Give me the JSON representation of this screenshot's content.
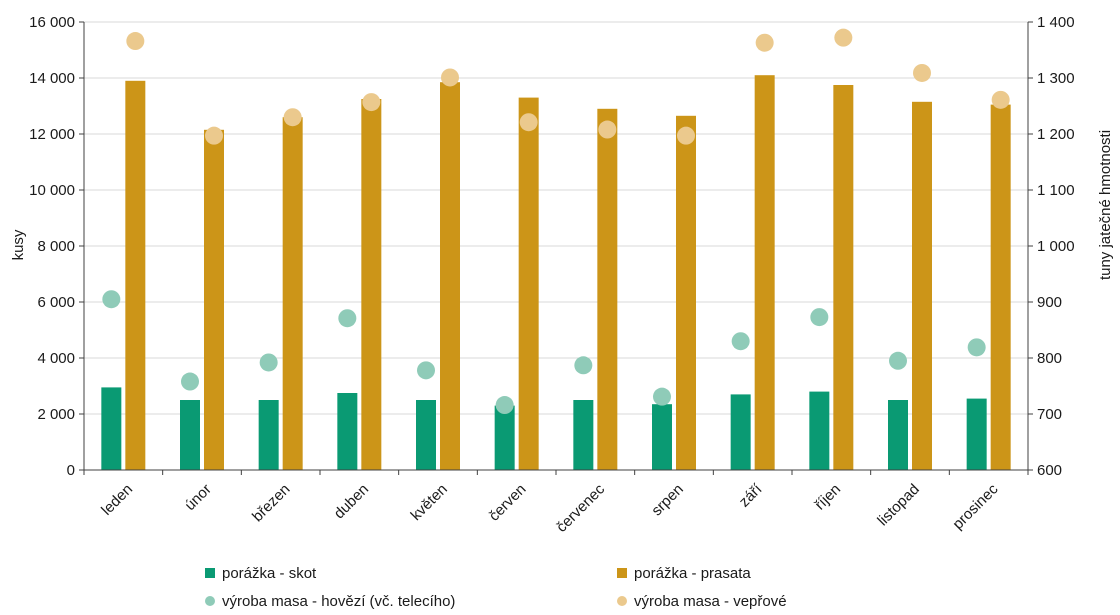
{
  "chart_data": {
    "type": "bar",
    "categories": [
      "leden",
      "únor",
      "březen",
      "duben",
      "květen",
      "červen",
      "červenec",
      "srpen",
      "září",
      "říjen",
      "listopad",
      "prosinec"
    ],
    "ylabel": "kusy",
    "y2label": "tuny jatečné hmotnosti",
    "ylim": [
      0,
      16000
    ],
    "y2lim": [
      600,
      1400
    ],
    "yticks": [
      "0",
      "2 000",
      "4 000",
      "6 000",
      "8 000",
      "10 000",
      "12 000",
      "14 000",
      "16 000"
    ],
    "y2ticks": [
      "600",
      "700",
      "800",
      "900",
      "1 000",
      "1 100",
      "1 200",
      "1 300",
      "1 400"
    ],
    "grid": true,
    "legend_position": "bottom",
    "series": [
      {
        "name": "porážka - skot",
        "type": "bar",
        "axis": "left",
        "color": "#0a9a73",
        "values": [
          2950,
          2500,
          2500,
          2750,
          2500,
          2300,
          2500,
          2350,
          2700,
          2800,
          2500,
          2550
        ]
      },
      {
        "name": "porážka - prasata",
        "type": "bar",
        "axis": "left",
        "color": "#cc9518",
        "values": [
          13900,
          12150,
          12600,
          13250,
          13850,
          13300,
          12900,
          12650,
          14100,
          13750,
          13150,
          13050
        ]
      },
      {
        "name": "výroba masa - hovězí (vč. telecího)",
        "type": "scatter",
        "axis": "right",
        "color": "#8fcbb8",
        "values": [
          905,
          758,
          792,
          871,
          778,
          716,
          787,
          731,
          830,
          873,
          795,
          819
        ]
      },
      {
        "name": "výroba masa - vepřové",
        "type": "scatter",
        "axis": "right",
        "color": "#ebc98d",
        "values": [
          1366,
          1197,
          1230,
          1257,
          1301,
          1221,
          1208,
          1197,
          1363,
          1372,
          1309,
          1261
        ]
      }
    ]
  }
}
